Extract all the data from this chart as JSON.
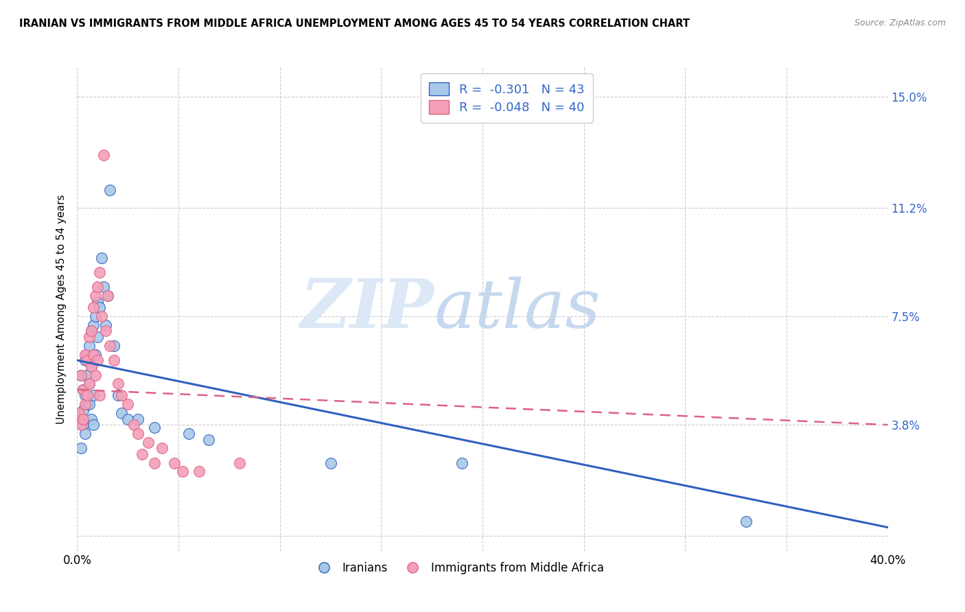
{
  "title": "IRANIAN VS IMMIGRANTS FROM MIDDLE AFRICA UNEMPLOYMENT AMONG AGES 45 TO 54 YEARS CORRELATION CHART",
  "source": "Source: ZipAtlas.com",
  "ylabel": "Unemployment Among Ages 45 to 54 years",
  "yticks": [
    0.0,
    0.038,
    0.075,
    0.112,
    0.15
  ],
  "ytick_labels": [
    "",
    "3.8%",
    "7.5%",
    "11.2%",
    "15.0%"
  ],
  "xlim": [
    0.0,
    0.4
  ],
  "ylim": [
    -0.005,
    0.16
  ],
  "legend_R_iranian": "-0.301",
  "legend_N_iranian": "43",
  "legend_R_midafrica": "-0.048",
  "legend_N_midafrica": "40",
  "color_iranian": "#a8c8e8",
  "color_midafrica": "#f4a0b8",
  "color_line_iranian": "#3060C0",
  "color_line_midafrica": "#E06080",
  "watermark_zip": "ZIP",
  "watermark_atlas": "atlas",
  "iranian_line_y0": 0.06,
  "iranian_line_y1": 0.003,
  "midafrica_line_y0": 0.05,
  "midafrica_line_y1": 0.038,
  "xtick_positions": [
    0.0,
    0.05,
    0.1,
    0.15,
    0.2,
    0.25,
    0.3,
    0.35,
    0.4
  ],
  "iranian_x": [
    0.001,
    0.002,
    0.002,
    0.003,
    0.003,
    0.003,
    0.004,
    0.004,
    0.004,
    0.005,
    0.005,
    0.005,
    0.006,
    0.006,
    0.006,
    0.006,
    0.007,
    0.007,
    0.007,
    0.008,
    0.008,
    0.008,
    0.009,
    0.009,
    0.01,
    0.01,
    0.011,
    0.012,
    0.013,
    0.014,
    0.015,
    0.016,
    0.018,
    0.02,
    0.022,
    0.025,
    0.03,
    0.038,
    0.055,
    0.065,
    0.125,
    0.19,
    0.33
  ],
  "iranian_y": [
    0.04,
    0.055,
    0.03,
    0.05,
    0.043,
    0.038,
    0.06,
    0.048,
    0.035,
    0.062,
    0.045,
    0.055,
    0.065,
    0.052,
    0.06,
    0.045,
    0.07,
    0.058,
    0.04,
    0.072,
    0.048,
    0.038,
    0.075,
    0.062,
    0.08,
    0.068,
    0.078,
    0.095,
    0.085,
    0.072,
    0.082,
    0.118,
    0.065,
    0.048,
    0.042,
    0.04,
    0.04,
    0.037,
    0.035,
    0.033,
    0.025,
    0.025,
    0.005
  ],
  "midafrica_x": [
    0.001,
    0.002,
    0.002,
    0.003,
    0.003,
    0.004,
    0.004,
    0.005,
    0.005,
    0.006,
    0.006,
    0.007,
    0.007,
    0.008,
    0.008,
    0.009,
    0.009,
    0.01,
    0.01,
    0.011,
    0.011,
    0.012,
    0.013,
    0.014,
    0.015,
    0.016,
    0.018,
    0.02,
    0.022,
    0.025,
    0.028,
    0.03,
    0.032,
    0.035,
    0.038,
    0.042,
    0.048,
    0.052,
    0.06,
    0.08
  ],
  "midafrica_y": [
    0.042,
    0.055,
    0.038,
    0.05,
    0.04,
    0.062,
    0.045,
    0.06,
    0.048,
    0.068,
    0.052,
    0.07,
    0.058,
    0.078,
    0.062,
    0.082,
    0.055,
    0.085,
    0.06,
    0.09,
    0.048,
    0.075,
    0.13,
    0.07,
    0.082,
    0.065,
    0.06,
    0.052,
    0.048,
    0.045,
    0.038,
    0.035,
    0.028,
    0.032,
    0.025,
    0.03,
    0.025,
    0.022,
    0.022,
    0.025
  ]
}
